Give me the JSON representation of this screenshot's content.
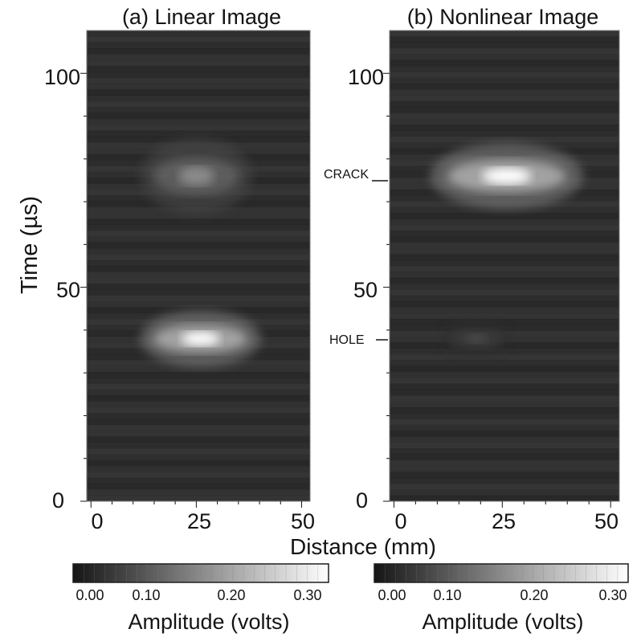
{
  "chart_data": {
    "type": "heatmap",
    "x_axis": {
      "label": "Distance (mm)",
      "range": [
        -1,
        52
      ],
      "ticks": [
        0,
        25,
        50
      ]
    },
    "y_axis": {
      "label": "Time (µs)",
      "range": [
        0,
        110
      ],
      "ticks": [
        0,
        50,
        100
      ]
    },
    "panels": [
      {
        "title": "(a) Linear Image",
        "background_amplitude": 0.05,
        "features": [
          {
            "x_center": 26,
            "y_center": 38,
            "x_halfwidth": 13,
            "y_halfwidth": 3,
            "peak_amplitude": 0.3
          },
          {
            "x_center": 25,
            "y_center": 76,
            "x_halfwidth": 12,
            "y_halfwidth": 4,
            "peak_amplitude": 0.15
          }
        ],
        "annotations": []
      },
      {
        "title": "(b) Nonlinear Image",
        "background_amplitude": 0.05,
        "features": [
          {
            "x_center": 26,
            "y_center": 76,
            "x_halfwidth": 16,
            "y_halfwidth": 3.5,
            "peak_amplitude": 0.3
          },
          {
            "x_center": 19,
            "y_center": 38,
            "x_halfwidth": 7,
            "y_halfwidth": 2,
            "peak_amplitude": 0.07
          }
        ],
        "annotations": [
          {
            "text": "CRACK",
            "time": 75
          },
          {
            "text": "HOLE",
            "time": 38
          }
        ]
      }
    ],
    "colorbar": {
      "label": "Amplitude (volts)",
      "range": [
        0,
        0.3
      ],
      "ticks": [
        "0.00",
        "0.10",
        "0.20",
        "0.30"
      ],
      "low_color": "#151515",
      "high_color": "#ffffff"
    },
    "grid": false,
    "legend": "none"
  }
}
